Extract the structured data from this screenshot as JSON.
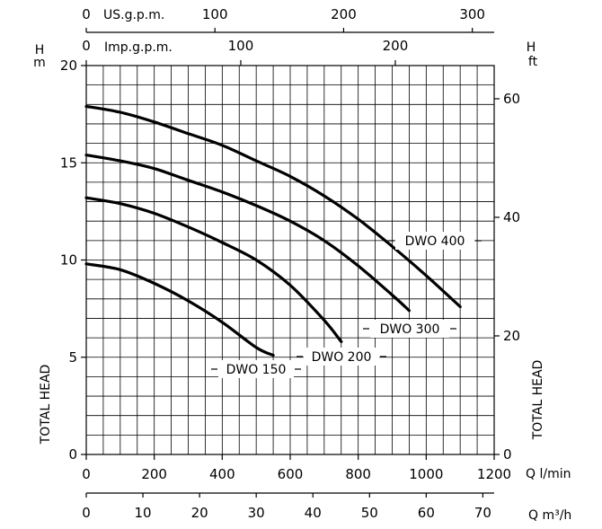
{
  "chart_data": {
    "type": "line",
    "title": "",
    "x_axis": {
      "label": "Q l/min",
      "range": [
        0,
        1200
      ],
      "ticks": [
        0,
        200,
        400,
        600,
        800,
        1000,
        1200
      ],
      "tick_labels": [
        "0",
        "200",
        "400",
        "600",
        "800",
        "1000",
        "1200"
      ]
    },
    "x_axis_m3h": {
      "label": "Q m³/h",
      "range": [
        0,
        72
      ],
      "ticks": [
        0,
        10,
        20,
        30,
        40,
        50,
        60,
        70
      ],
      "tick_labels": [
        "0",
        "10",
        "20",
        "30",
        "40",
        "50",
        "60",
        "70"
      ]
    },
    "x_axis_usgpm": {
      "label": "US.g.p.m.",
      "range": [
        0,
        317
      ],
      "ticks": [
        0,
        100,
        200,
        300
      ],
      "tick_labels": [
        "0",
        "100",
        "200",
        "300"
      ]
    },
    "x_axis_impgpm": {
      "label": "Imp.g.p.m.",
      "range": [
        0,
        264
      ],
      "ticks": [
        0,
        100,
        200
      ],
      "tick_labels": [
        "0",
        "100",
        "200"
      ]
    },
    "y_axis": {
      "label": "TOTAL HEAD",
      "unit_top": "H",
      "unit_bottom": "m",
      "range": [
        0,
        20
      ],
      "ticks": [
        0,
        5,
        10,
        15,
        20
      ],
      "tick_labels": [
        "0",
        "5",
        "10",
        "15",
        "20"
      ]
    },
    "y_axis_right": {
      "label": "TOTAL HEAD",
      "unit_top": "H",
      "unit_bottom": "ft",
      "range": [
        0,
        65.6
      ],
      "ticks": [
        0,
        20,
        40,
        60
      ],
      "tick_labels": [
        "0",
        "20",
        "40",
        "60"
      ]
    },
    "grid": true,
    "series": [
      {
        "name": "DWO 150",
        "x": [
          0,
          100,
          200,
          300,
          400,
          500,
          550
        ],
        "y": [
          9.8,
          9.5,
          8.8,
          7.9,
          6.8,
          5.5,
          5.1
        ]
      },
      {
        "name": "DWO 200",
        "x": [
          0,
          100,
          200,
          300,
          400,
          500,
          600,
          700,
          750
        ],
        "y": [
          13.2,
          12.9,
          12.4,
          11.7,
          10.9,
          10.0,
          8.7,
          6.9,
          5.8
        ]
      },
      {
        "name": "DWO 300",
        "x": [
          0,
          100,
          200,
          300,
          400,
          500,
          600,
          700,
          800,
          900,
          950
        ],
        "y": [
          15.4,
          15.1,
          14.7,
          14.1,
          13.5,
          12.8,
          12.0,
          11.0,
          9.7,
          8.2,
          7.4
        ]
      },
      {
        "name": "DWO 400",
        "x": [
          0,
          100,
          200,
          300,
          400,
          500,
          600,
          700,
          800,
          900,
          1000,
          1100
        ],
        "y": [
          17.9,
          17.6,
          17.1,
          16.5,
          15.9,
          15.1,
          14.3,
          13.3,
          12.1,
          10.7,
          9.2,
          7.6
        ]
      }
    ]
  }
}
